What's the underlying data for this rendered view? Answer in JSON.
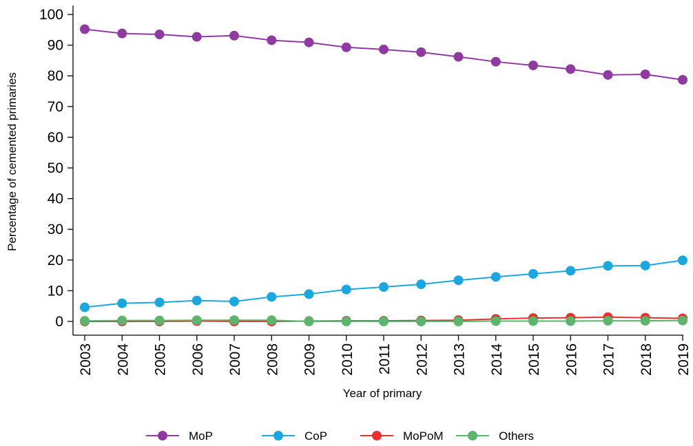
{
  "chart_data": {
    "type": "line",
    "title": "",
    "xlabel": "Year of primary",
    "ylabel": "Percentage of cemented primaries",
    "x": [
      "2003",
      "2004",
      "2005",
      "2006",
      "2007",
      "2008",
      "2009",
      "2010",
      "2011",
      "2012",
      "2013",
      "2014",
      "2015",
      "2016",
      "2017",
      "2018",
      "2019"
    ],
    "ylim": [
      0,
      100
    ],
    "yticks": [
      0,
      10,
      20,
      30,
      40,
      50,
      60,
      70,
      80,
      90,
      100
    ],
    "grid": false,
    "legend_position": "bottom",
    "series": [
      {
        "name": "MoP",
        "color": "#8E3AA0",
        "values": [
          95.2,
          93.8,
          93.5,
          92.7,
          93.1,
          91.6,
          90.9,
          89.3,
          88.6,
          87.7,
          86.2,
          84.6,
          83.4,
          82.2,
          80.3,
          80.5,
          78.7
        ]
      },
      {
        "name": "CoP",
        "color": "#1AA7E0",
        "values": [
          4.6,
          5.9,
          6.2,
          6.8,
          6.5,
          8.0,
          8.9,
          10.4,
          11.2,
          12.1,
          13.4,
          14.5,
          15.5,
          16.5,
          18.1,
          18.2,
          19.9
        ]
      },
      {
        "name": "MoPoM",
        "color": "#E8302D",
        "values": [
          0.0,
          0.0,
          0.0,
          0.1,
          0.0,
          0.0,
          0.1,
          0.2,
          0.2,
          0.3,
          0.4,
          0.8,
          1.1,
          1.2,
          1.4,
          1.2,
          1.0
        ]
      },
      {
        "name": "Others",
        "color": "#5BB56A",
        "values": [
          0.2,
          0.3,
          0.3,
          0.4,
          0.4,
          0.4,
          0.0,
          0.0,
          0.0,
          0.0,
          0.0,
          0.1,
          0.1,
          0.1,
          0.2,
          0.2,
          0.3
        ]
      }
    ]
  }
}
